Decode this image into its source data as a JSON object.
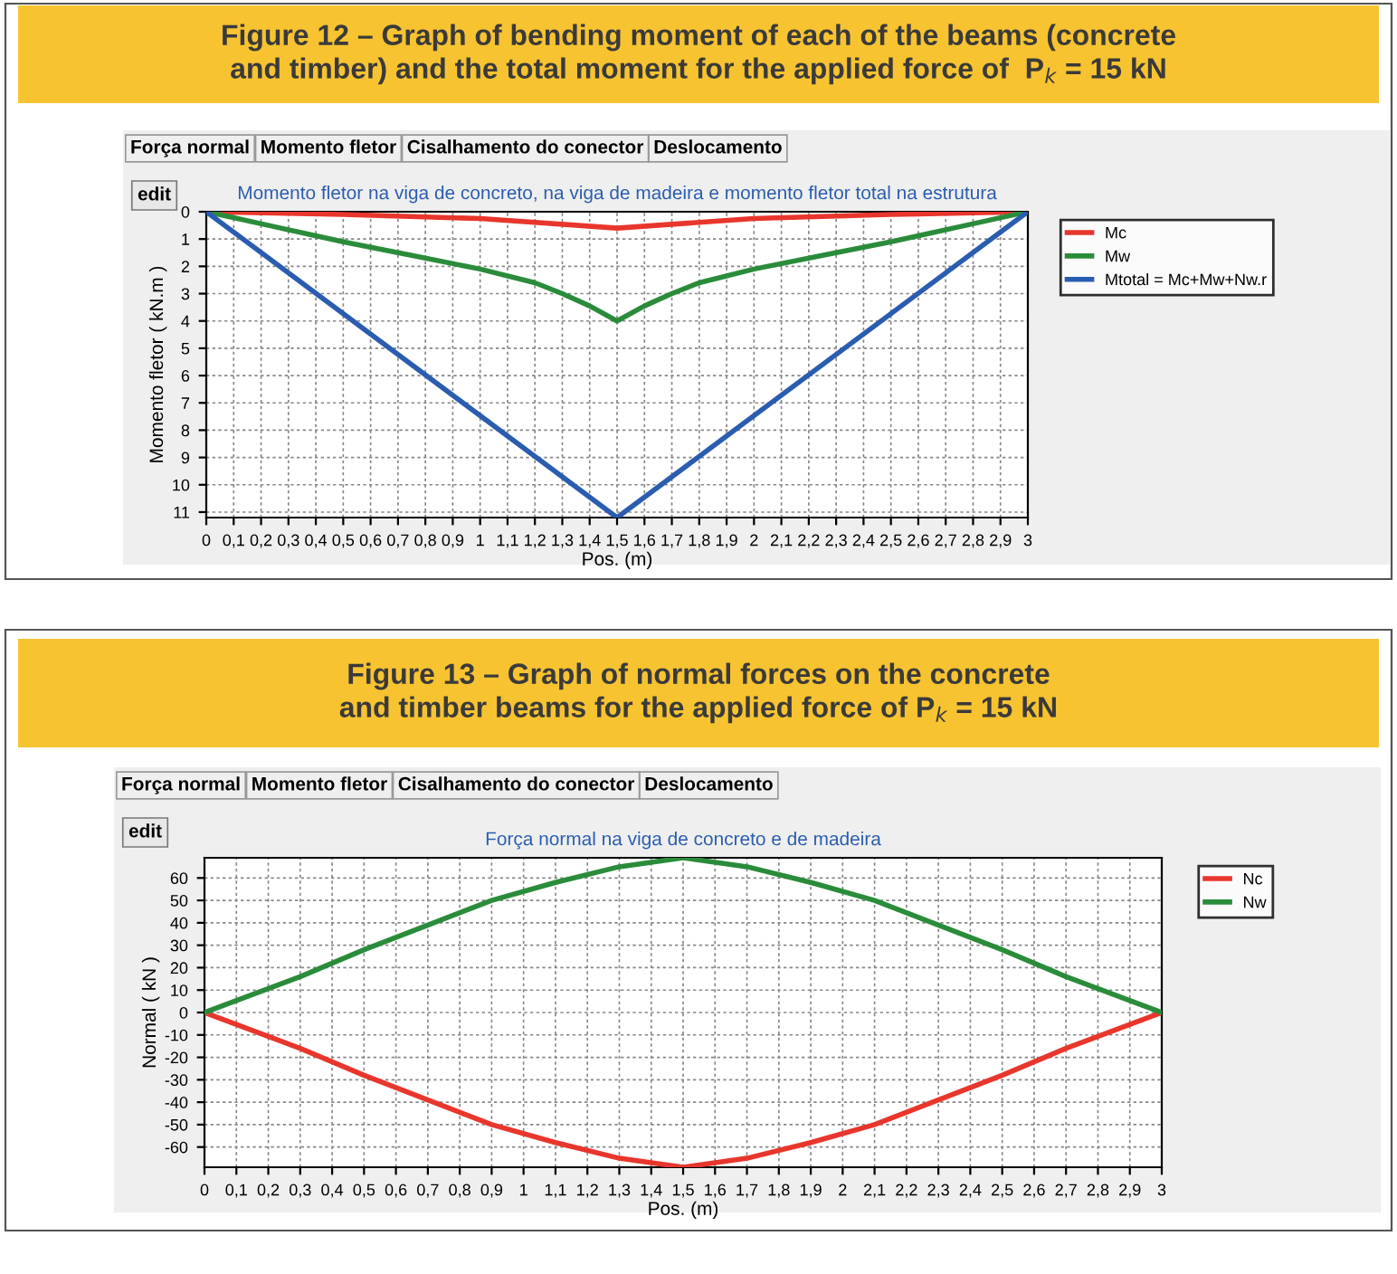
{
  "chart_data": [
    {
      "type": "line",
      "title": "Figure 12 – Graph of bending moment of each of the beams (concrete\nand timber) and the total moment for the applied force of  P$_{k}$ = 15 kN",
      "subtitle": "Momento fletor na viga de concreto, na viga de madeira e momento fletor total na estrutura",
      "xlabel": "Pos. (m)",
      "ylabel": "Momento fletor ( kN.m )",
      "annotations": [
        "Força normal",
        "Momento fletor",
        "Cisalhamento do conector",
        "Deslocamento",
        "edit"
      ],
      "xlim": [
        0,
        3
      ],
      "ylim": [
        11.2,
        0
      ],
      "xticks": [
        0,
        {
          "value": 0.1,
          "label": "0,1"
        },
        {
          "value": 0.2,
          "label": "0,2"
        },
        {
          "value": 0.3,
          "label": "0,3"
        },
        {
          "value": 0.4,
          "label": "0,4"
        },
        {
          "value": 0.5,
          "label": "0,5"
        },
        {
          "value": 0.6,
          "label": "0,6"
        },
        {
          "value": 0.7,
          "label": "0,7"
        },
        {
          "value": 0.8,
          "label": "0,8"
        },
        {
          "value": 0.9,
          "label": "0,9"
        },
        1,
        {
          "value": 1.1,
          "label": "1,1"
        },
        {
          "value": 1.2,
          "label": "1,2"
        },
        {
          "value": 1.3,
          "label": "1,3"
        },
        {
          "value": 1.4,
          "label": "1,4"
        },
        {
          "value": 1.5,
          "label": "1,5"
        },
        {
          "value": 1.6,
          "label": "1,6"
        },
        {
          "value": 1.7,
          "label": "1,7"
        },
        {
          "value": 1.8,
          "label": "1,8"
        },
        {
          "value": 1.9,
          "label": "1,9"
        },
        2,
        {
          "value": 2.1,
          "label": "2,1"
        },
        {
          "value": 2.2,
          "label": "2,2"
        },
        {
          "value": 2.3,
          "label": "2,3"
        },
        {
          "value": 2.4,
          "label": "2,4"
        },
        {
          "value": 2.5,
          "label": "2,5"
        },
        {
          "value": 2.6,
          "label": "2,6"
        },
        {
          "value": 2.7,
          "label": "2,7"
        },
        {
          "value": 2.8,
          "label": "2,8"
        },
        {
          "value": 2.9,
          "label": "2,9"
        },
        3
      ],
      "yticks": [
        0,
        1,
        2,
        3,
        4,
        5,
        6,
        7,
        8,
        9,
        10,
        11
      ],
      "grid": true,
      "legend": "top right",
      "marker": "none",
      "line_style": "solid",
      "series": [
        {
          "name": "Mc",
          "color": "#e8362c",
          "x": [
            0,
            0.5,
            1.0,
            1.5,
            2.0,
            2.5,
            3
          ],
          "values": [
            0,
            0.1,
            0.25,
            0.6,
            0.25,
            0.1,
            0
          ]
        },
        {
          "name": "Mw",
          "color": "#2a8c3a",
          "x": [
            0,
            0.25,
            0.5,
            0.75,
            1.0,
            1.2,
            1.3,
            1.4,
            1.5,
            1.6,
            1.7,
            1.8,
            2.0,
            2.25,
            2.5,
            2.75,
            3
          ],
          "values": [
            0,
            0.55,
            1.1,
            1.6,
            2.1,
            2.6,
            3.0,
            3.45,
            4.0,
            3.45,
            3.0,
            2.6,
            2.1,
            1.6,
            1.1,
            0.55,
            0
          ]
        },
        {
          "name": "Mtotal = Mc+Mw+Nw.r",
          "color": "#2a5db0",
          "x": [
            0,
            1.5,
            3
          ],
          "values": [
            0,
            11.2,
            0
          ]
        }
      ]
    },
    {
      "type": "line",
      "title": "Figure 13 – Graph of normal forces on the concrete\nand timber beams for the applied force of P$_{k}$ = 15 kN",
      "subtitle": "Força normal na viga de concreto e de madeira",
      "xlabel": "Pos. (m)",
      "ylabel": "Normal ( kN )",
      "annotations": [
        "Força normal",
        "Momento fletor",
        "Cisalhamento do conector",
        "Deslocamento",
        "edit"
      ],
      "xlim": [
        0,
        3
      ],
      "ylim": [
        -69,
        69
      ],
      "xticks": [
        0,
        {
          "value": 0.1,
          "label": "0,1"
        },
        {
          "value": 0.2,
          "label": "0,2"
        },
        {
          "value": 0.3,
          "label": "0,3"
        },
        {
          "value": 0.4,
          "label": "0,4"
        },
        {
          "value": 0.5,
          "label": "0,5"
        },
        {
          "value": 0.6,
          "label": "0,6"
        },
        {
          "value": 0.7,
          "label": "0,7"
        },
        {
          "value": 0.8,
          "label": "0,8"
        },
        {
          "value": 0.9,
          "label": "0,9"
        },
        1,
        {
          "value": 1.1,
          "label": "1,1"
        },
        {
          "value": 1.2,
          "label": "1,2"
        },
        {
          "value": 1.3,
          "label": "1,3"
        },
        {
          "value": 1.4,
          "label": "1,4"
        },
        {
          "value": 1.5,
          "label": "1,5"
        },
        {
          "value": 1.6,
          "label": "1,6"
        },
        {
          "value": 1.7,
          "label": "1,7"
        },
        {
          "value": 1.8,
          "label": "1,8"
        },
        {
          "value": 1.9,
          "label": "1,9"
        },
        2,
        {
          "value": 2.1,
          "label": "2,1"
        },
        {
          "value": 2.2,
          "label": "2,2"
        },
        {
          "value": 2.3,
          "label": "2,3"
        },
        {
          "value": 2.4,
          "label": "2,4"
        },
        {
          "value": 2.5,
          "label": "2,5"
        },
        {
          "value": 2.6,
          "label": "2,6"
        },
        {
          "value": 2.7,
          "label": "2,7"
        },
        {
          "value": 2.8,
          "label": "2,8"
        },
        {
          "value": 2.9,
          "label": "2,9"
        },
        3
      ],
      "yticks": [
        -60,
        -50,
        -40,
        -30,
        -20,
        -10,
        0,
        10,
        20,
        30,
        40,
        50,
        60
      ],
      "grid": true,
      "legend": "top right",
      "marker": "none",
      "line_style": "solid",
      "series": [
        {
          "name": "Nc",
          "color": "#e8362c",
          "x": [
            0,
            0.3,
            0.5,
            0.7,
            0.9,
            1.1,
            1.3,
            1.5,
            1.7,
            1.9,
            2.1,
            2.3,
            2.5,
            2.7,
            3
          ],
          "values": [
            0,
            -16,
            -28,
            -39,
            -50,
            -58,
            -65,
            -69,
            -65,
            -58,
            -50,
            -39,
            -28,
            -16,
            0
          ]
        },
        {
          "name": "Nw",
          "color": "#2a8c3a",
          "x": [
            0,
            0.3,
            0.5,
            0.7,
            0.9,
            1.1,
            1.3,
            1.5,
            1.7,
            1.9,
            2.1,
            2.3,
            2.5,
            2.7,
            3
          ],
          "values": [
            0,
            16,
            28,
            39,
            50,
            58,
            65,
            69,
            65,
            58,
            50,
            39,
            28,
            16,
            0
          ]
        }
      ]
    }
  ]
}
